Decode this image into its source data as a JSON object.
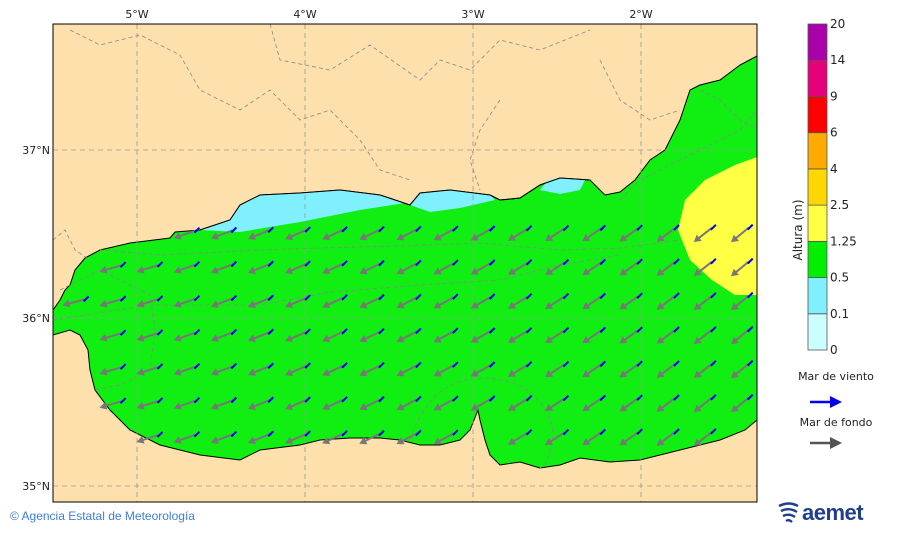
{
  "map": {
    "longitude_labels": [
      "5°W",
      "4°W",
      "3°W",
      "2°W"
    ],
    "latitude_labels": [
      "37°N",
      "36°N",
      "35°N"
    ],
    "colors": {
      "land": "#fde0ac",
      "sea_green": "#00f000",
      "sea_cyan": "#80f0ff",
      "sea_yellow": "#ffff44",
      "wind_sea_arrow": "#0000ff",
      "swell_arrow": "#777777"
    }
  },
  "legend": {
    "title": "Altura (m)",
    "levels": [
      "0",
      "0.1",
      "0.5",
      "1.25",
      "2.5",
      "4",
      "6",
      "9",
      "14",
      "20"
    ],
    "colors": [
      "#ccffff",
      "#80f0ff",
      "#00ee00",
      "#ffff44",
      "#ffd700",
      "#ffaa00",
      "#ff0000",
      "#e6007a",
      "#aa00aa"
    ],
    "wind_sea_label": "Mar de viento",
    "swell_label": "Mar de fondo"
  },
  "footer": {
    "copyright": "© Agencia Estatal de Meteorología",
    "logo_text": "aemet"
  }
}
